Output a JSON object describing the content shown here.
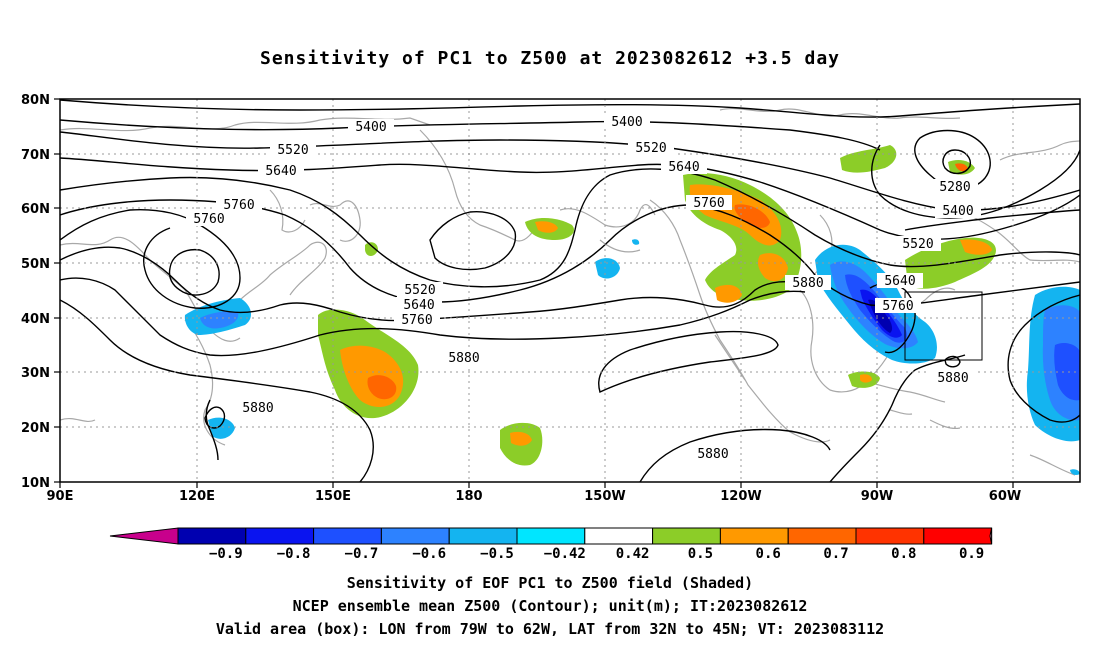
{
  "title": "Sensitivity of PC1 to Z500 at 2023082612 +3.5 day",
  "lat_labels": [
    "80N",
    "70N",
    "60N",
    "50N",
    "40N",
    "30N",
    "20N",
    "10N"
  ],
  "lon_labels": [
    "90E",
    "120E",
    "150E",
    "180",
    "150W",
    "120W",
    "90W",
    "60W"
  ],
  "contour_labels": [
    "5400",
    "5400",
    "5520",
    "5520",
    "5640",
    "5640",
    "5760",
    "5760",
    "5760",
    "5520",
    "5640",
    "5760",
    "5880",
    "5880",
    "5880",
    "5880",
    "5280",
    "5400",
    "5520",
    "5640",
    "5760",
    "5880"
  ],
  "colorbar": {
    "labels": [
      "-0.9",
      "-0.8",
      "-0.7",
      "-0.6",
      "-0.5",
      "-0.42",
      "0.42",
      "0.5",
      "0.6",
      "0.7",
      "0.8",
      "0.9"
    ],
    "colors": [
      "#c8008c",
      "#0000b0",
      "#0a14f0",
      "#1e50ff",
      "#2d82ff",
      "#14b4f0",
      "#00e6ff",
      "#ffffff",
      "#8ccd28",
      "#ff9900",
      "#ff6600",
      "#ff3300",
      "#ff0000",
      "#ffa0c8"
    ]
  },
  "captions": {
    "line1": "Sensitivity of EOF PC1 to Z500 field (Shaded)",
    "line2": "NCEP ensemble mean Z500 (Contour); unit(m); IT:2023082612",
    "line3": "Valid area (box): LON from 79W to 62W, LAT from 32N to 45N; VT: 2023083112"
  }
}
